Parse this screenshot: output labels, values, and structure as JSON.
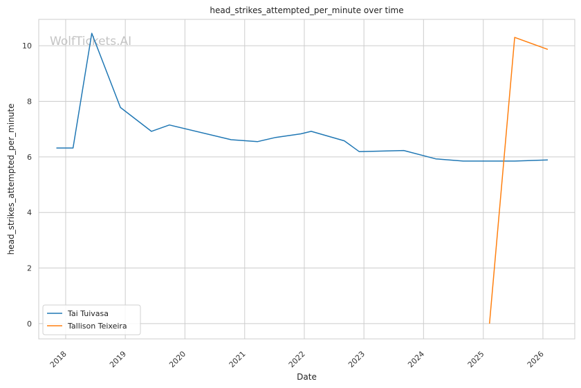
{
  "chart_data": {
    "type": "line",
    "title": "head_strikes_attempted_per_minute over time",
    "xlabel": "Date",
    "ylabel": "head_strikes_attempted_per_minute",
    "xlim": [
      "2017-07-20",
      "2026-07-15"
    ],
    "ylim": [
      -0.55,
      10.95
    ],
    "x_ticks": [
      "2018",
      "2019",
      "2020",
      "2021",
      "2022",
      "2023",
      "2024",
      "2025",
      "2026"
    ],
    "y_ticks": [
      0,
      2,
      4,
      6,
      8,
      10
    ],
    "grid": true,
    "legend_position": "lower-left",
    "watermark": "WolfTickets.AI",
    "series": [
      {
        "name": "Tai Tuivasa",
        "color": "#1f77b4",
        "points": [
          {
            "x": "2017-11-05",
            "y": 6.32
          },
          {
            "x": "2018-02-15",
            "y": 6.32
          },
          {
            "x": "2018-06-10",
            "y": 10.45
          },
          {
            "x": "2018-12-02",
            "y": 7.78
          },
          {
            "x": "2019-06-10",
            "y": 6.92
          },
          {
            "x": "2019-09-28",
            "y": 7.15
          },
          {
            "x": "2020-10-10",
            "y": 6.62
          },
          {
            "x": "2021-03-20",
            "y": 6.55
          },
          {
            "x": "2021-07-10",
            "y": 6.7
          },
          {
            "x": "2021-12-11",
            "y": 6.83
          },
          {
            "x": "2022-02-12",
            "y": 6.92
          },
          {
            "x": "2022-09-03",
            "y": 6.58
          },
          {
            "x": "2022-12-03",
            "y": 6.19
          },
          {
            "x": "2023-09-02",
            "y": 6.23
          },
          {
            "x": "2024-03-16",
            "y": 5.93
          },
          {
            "x": "2024-08-31",
            "y": 5.85
          },
          {
            "x": "2025-07-12",
            "y": 5.85
          },
          {
            "x": "2026-01-31",
            "y": 5.89
          }
        ]
      },
      {
        "name": "Tallison Teixeira",
        "color": "#ff7f0e",
        "points": [
          {
            "x": "2025-02-08",
            "y": 0.0
          },
          {
            "x": "2025-07-12",
            "y": 10.3
          },
          {
            "x": "2026-01-31",
            "y": 9.87
          }
        ]
      }
    ]
  }
}
